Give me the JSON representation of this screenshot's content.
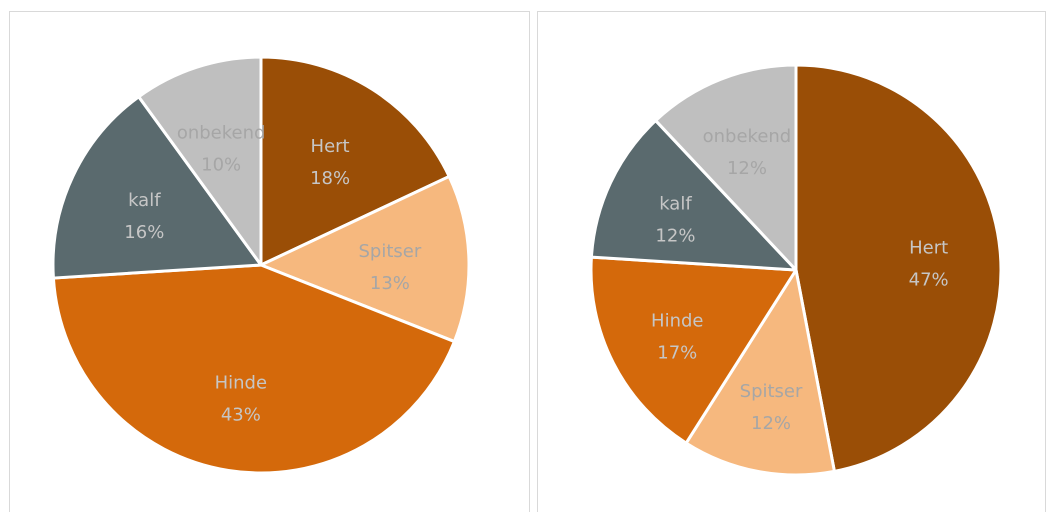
{
  "colors": {
    "Hert": "#9a4e06",
    "Spitser": "#f6b87e",
    "Hinde": "#d4690b",
    "kalf": "#5a6a6e",
    "onbekend": "#bfbfbf",
    "label_on_dark": "#c6c6c6",
    "label_on_light": "#a6a6a6"
  },
  "chart_data": [
    {
      "type": "pie",
      "categories": [
        "Hert",
        "Spitser",
        "Hinde",
        "kalf",
        "onbekend"
      ],
      "values": [
        18,
        13,
        43,
        16,
        10
      ],
      "labels": [
        "18%",
        "13%",
        "43%",
        "16%",
        "10%"
      ]
    },
    {
      "type": "pie",
      "categories": [
        "Hert",
        "Spitser",
        "Hinde",
        "kalf",
        "onbekend"
      ],
      "values": [
        47,
        12,
        17,
        12,
        12
      ],
      "labels": [
        "47%",
        "12%",
        "17%",
        "12%",
        "12%"
      ]
    }
  ]
}
